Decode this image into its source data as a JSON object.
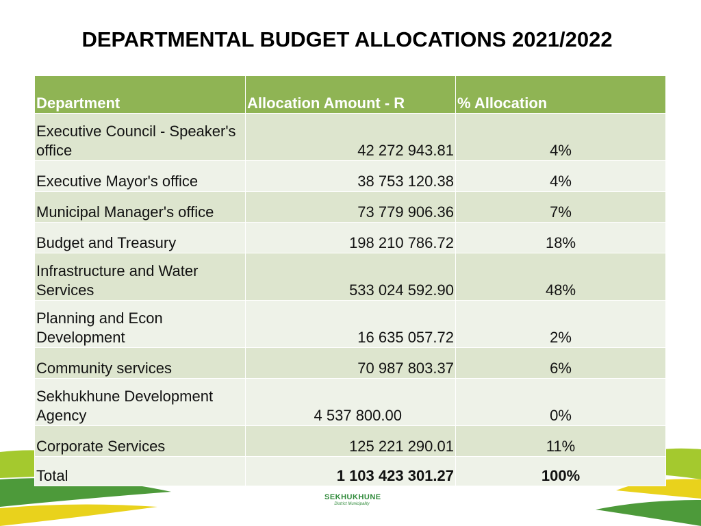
{
  "title": "DEPARTMENTAL BUDGET ALLOCATIONS 2021/2022",
  "table": {
    "headers": [
      "Department",
      "Allocation Amount - R",
      "% Allocation"
    ],
    "rows": [
      {
        "department": "Executive Council - Speaker's office",
        "amount": "42 272 943.81",
        "percent": "4%"
      },
      {
        "department": "Executive Mayor's office",
        "amount": "38 753 120.38",
        "percent": "4%"
      },
      {
        "department": "Municipal Manager's office",
        "amount": "73 779 906.36",
        "percent": "7%"
      },
      {
        "department": "Budget and Treasury",
        "amount": "198 210 786.72",
        "percent": "18%"
      },
      {
        "department": "Infrastructure and Water Services",
        "amount": "533 024 592.90",
        "percent": "48%"
      },
      {
        "department": "Planning and Econ Development",
        "amount": "16 635 057.72",
        "percent": "2%"
      },
      {
        "department": "Community services",
        "amount": "70 987 803.37",
        "percent": "6%"
      },
      {
        "department": "Sekhukhune Development Agency",
        "amount": "4 537 800.00",
        "percent": "0%"
      },
      {
        "department": "Corporate Services",
        "amount": "125 221 290.01",
        "percent": "11%"
      }
    ],
    "total": {
      "label": "Total",
      "amount": "1 103 423 301.27",
      "percent": "100%"
    }
  },
  "logo": {
    "name": "SEKHUKHUNE",
    "subtitle": "District Municipality"
  },
  "colors": {
    "header_green": "#8fb454",
    "row_dark": "#dde5ce",
    "row_light": "#eef2e8",
    "swoosh_lime": "#a4c92e",
    "swoosh_yellow": "#e9d21c",
    "swoosh_green": "#4d9a3a"
  }
}
